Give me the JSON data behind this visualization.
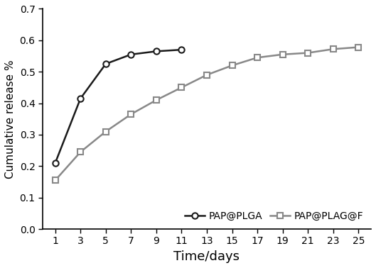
{
  "series1_label": "PAP@PLGA",
  "series1_x": [
    1,
    3,
    5,
    7,
    9,
    11
  ],
  "series1_y": [
    0.21,
    0.415,
    0.525,
    0.555,
    0.565,
    0.57
  ],
  "series1_color": "#1a1a1a",
  "series1_marker": "o",
  "series1_markersize": 6,
  "series2_label": "PAP@PLAG@F",
  "series2_x": [
    1,
    3,
    5,
    7,
    9,
    11,
    13,
    15,
    17,
    19,
    21,
    23,
    25
  ],
  "series2_y": [
    0.155,
    0.245,
    0.31,
    0.365,
    0.41,
    0.45,
    0.49,
    0.52,
    0.545,
    0.555,
    0.56,
    0.572,
    0.578
  ],
  "series2_color": "#888888",
  "series2_marker": "s",
  "series2_markersize": 6,
  "xlabel": "Time/days",
  "ylabel": "Cumulative release %",
  "xlim": [
    0,
    26
  ],
  "ylim": [
    0,
    0.7
  ],
  "xticks": [
    1,
    3,
    5,
    7,
    9,
    11,
    13,
    15,
    17,
    19,
    21,
    23,
    25
  ],
  "yticks": [
    0,
    0.1,
    0.2,
    0.3,
    0.4,
    0.5,
    0.6,
    0.7
  ],
  "background_color": "#ffffff",
  "linewidth": 1.8,
  "xlabel_fontsize": 13,
  "ylabel_fontsize": 11,
  "tick_fontsize": 10,
  "legend_fontsize": 10
}
